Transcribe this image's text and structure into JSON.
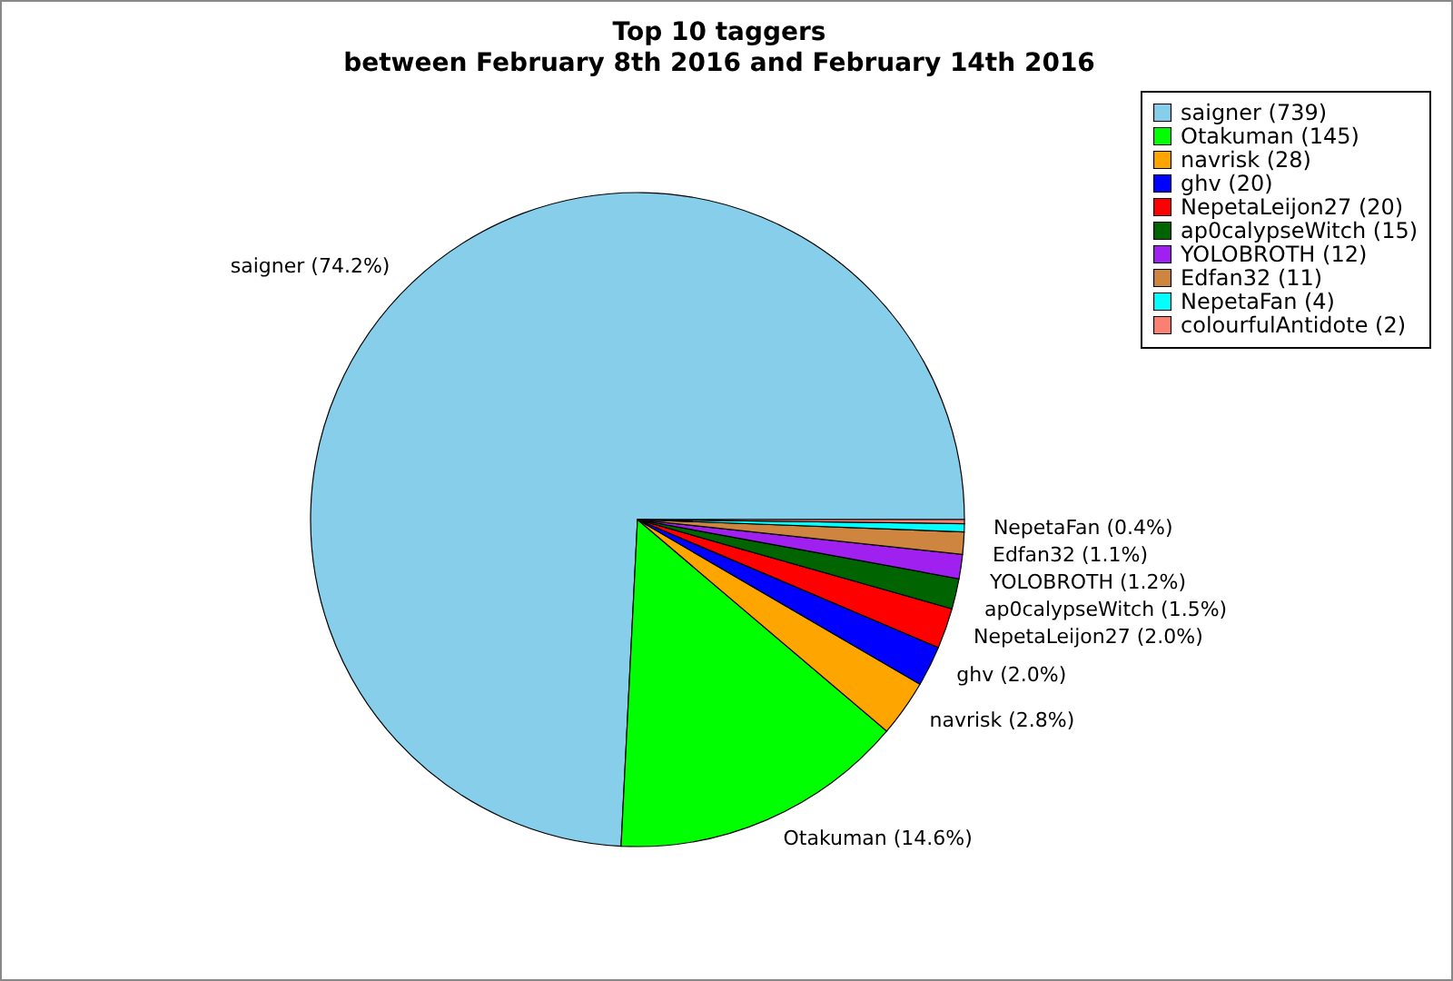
{
  "chart_data": {
    "type": "pie",
    "title": "Top 10 taggers\nbetween February 8th 2016 and February 14th 2016",
    "categories": [
      "saigner (739)",
      "Otakuman (145)",
      "navrisk (28)",
      "ghv (20)",
      "NepetaLeijon27 (20)",
      "ap0calypseWitch (15)",
      "YOLOBROTH (12)",
      "Edfan32 (11)",
      "NepetaFan (4)",
      "colourfulAntidote (2)"
    ],
    "values": [
      74.2,
      14.6,
      2.8,
      2.0,
      2.0,
      1.5,
      1.2,
      1.1,
      0.4,
      0.2
    ],
    "colors": [
      "#87ceeb",
      "#00ff00",
      "#ffa500",
      "#0000ff",
      "#ff0000",
      "#006400",
      "#a020f0",
      "#cd853f",
      "#00ffff",
      "#fa8072"
    ],
    "value_labels": [
      "saigner (74.2%)",
      "Otakuman (14.6%)",
      "navrisk (2.8%)",
      "ghv (2.0%)",
      "NepetaLeijon27 (2.0%)",
      "ap0calypseWitch (1.5%)",
      "YOLOBROTH (1.2%)",
      "Edfan32 (1.1%)",
      "NepetaFan (0.4%)",
      null
    ],
    "legend": "top right"
  }
}
